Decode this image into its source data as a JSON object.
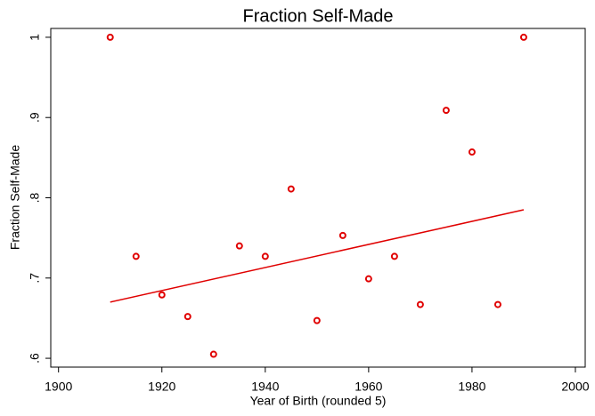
{
  "chart_data": {
    "type": "scatter",
    "title": "Fraction Self-Made",
    "x_label": "Year of Birth (rounded 5)",
    "y_label": "Fraction Self-Made",
    "xlim": [
      1898.5,
      2001.9
    ],
    "ylim": [
      0.589,
      1.011
    ],
    "xticks": [
      1900,
      1920,
      1940,
      1960,
      1980,
      2000
    ],
    "yticks": [
      {
        "value": 0.6,
        "label": ".6"
      },
      {
        "value": 0.7,
        "label": ".7"
      },
      {
        "value": 0.8,
        "label": ".8"
      },
      {
        "value": 0.9,
        "label": ".9"
      },
      1
    ],
    "grid": false,
    "series": [
      {
        "type": "scatter",
        "color": "#e00000",
        "x": [
          1910,
          1915,
          1920,
          1925,
          1930,
          1935,
          1940,
          1945,
          1950,
          1955,
          1960,
          1965,
          1970,
          1975,
          1980,
          1985,
          1990
        ],
        "values": [
          1.0,
          0.727,
          0.679,
          0.652,
          0.605,
          0.74,
          0.727,
          0.811,
          0.647,
          0.753,
          0.699,
          0.727,
          0.667,
          0.909,
          0.857,
          0.667,
          1.0
        ]
      },
      {
        "type": "line",
        "color": "#e00000",
        "x": [
          1910,
          1990
        ],
        "values": [
          0.67,
          0.785
        ]
      }
    ]
  }
}
